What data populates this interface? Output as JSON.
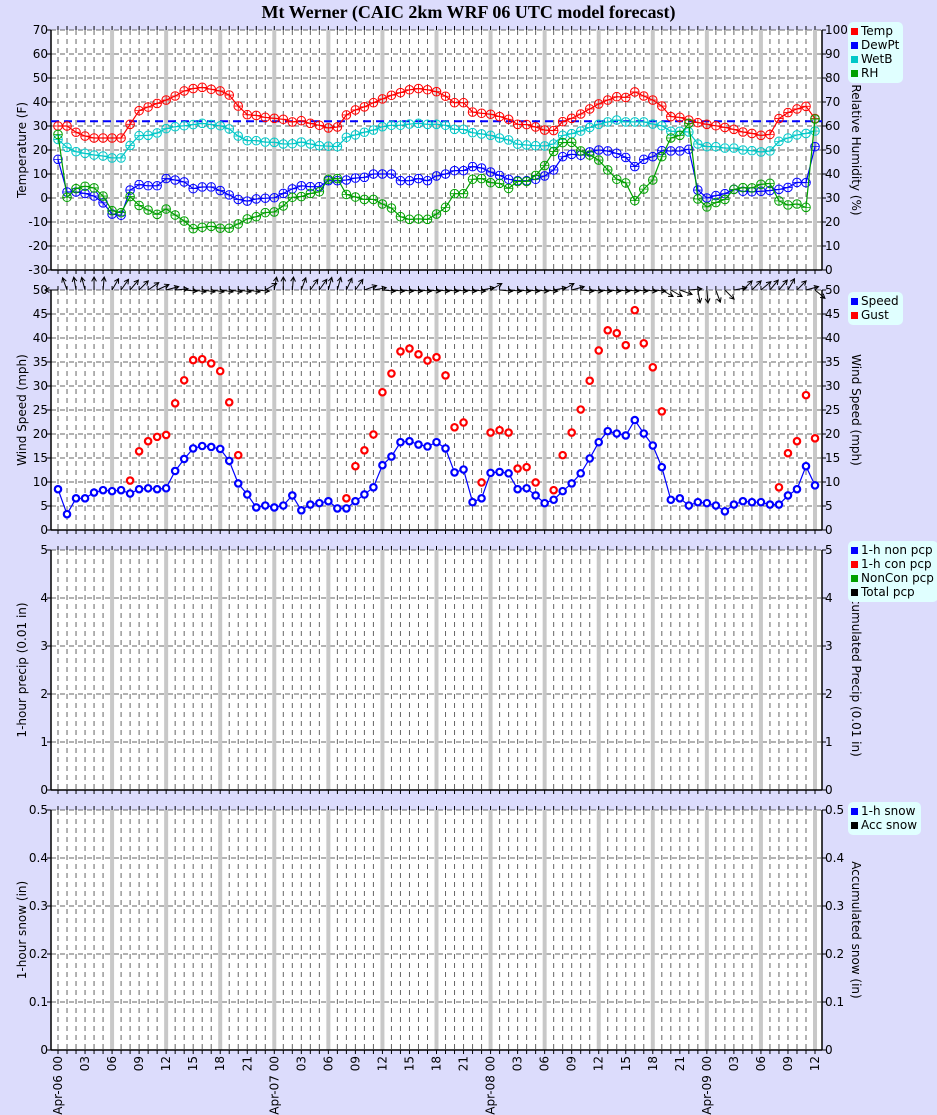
{
  "title": "Mt Werner (CAIC 2km WRF 06 UTC model forecast)",
  "x_axis": {
    "type": "time",
    "start": "Apr-06 00",
    "end": "Apr-09 12",
    "step_hours": 1,
    "tick_labels": [
      "Apr-06 00",
      "03",
      "06",
      "09",
      "12",
      "15",
      "18",
      "21",
      "Apr-07 00",
      "03",
      "06",
      "09",
      "12",
      "15",
      "18",
      "21",
      "Apr-08 00",
      "03",
      "06",
      "09",
      "12",
      "15",
      "18",
      "21",
      "Apr-09 00",
      "03",
      "06",
      "09",
      "12"
    ],
    "major_grid_every_hours": 6
  },
  "chart_data": [
    {
      "type": "line",
      "ylabel": "Temperature (F)",
      "ylabel_right": "Relative Humidity (%)",
      "ylim": [
        -30,
        70
      ],
      "ylim_right": [
        0,
        100
      ],
      "yticks": [
        -30,
        -20,
        -10,
        0,
        10,
        20,
        30,
        40,
        50,
        60,
        70
      ],
      "yticks_right": [
        0,
        10,
        20,
        30,
        40,
        50,
        60,
        70,
        80,
        90,
        100
      ],
      "grid": true,
      "legend": "top-right outside",
      "reference_line": {
        "y": 32,
        "color": "#0000ff",
        "style": "dashed"
      },
      "series": [
        {
          "name": "Temp",
          "color": "#ff0000",
          "axis": "left",
          "values": [
            30,
            30,
            27.4,
            25.8,
            25,
            25,
            25,
            25,
            30.7,
            36.4,
            37.9,
            39.4,
            40.8,
            42.5,
            44.6,
            45.6,
            46.1,
            45.3,
            44.6,
            42.9,
            38.3,
            34.7,
            34.4,
            33.6,
            33.2,
            32.8,
            31.7,
            32.2,
            31.1,
            30.3,
            29.2,
            29.6,
            34.6,
            36.7,
            38,
            39.7,
            41.3,
            42.8,
            43.9,
            45.1,
            45.6,
            45.1,
            44.3,
            42.4,
            39.7,
            39.7,
            35.8,
            35.3,
            34.9,
            33.9,
            32.8,
            30.7,
            30.6,
            29.6,
            28.3,
            28.1,
            31.8,
            33.2,
            35,
            37.1,
            39.2,
            40.8,
            42.2,
            41.9,
            44.2,
            42.5,
            40.8,
            38.3,
            33.9,
            33.6,
            32.5,
            31.4,
            30.7,
            30.1,
            29.4,
            28.6,
            27.5,
            26.9,
            26.1,
            26.5,
            33.1,
            35.6,
            37.1,
            38.2,
            33.1
          ]
        },
        {
          "name": "DewPt",
          "color": "#0000ff",
          "axis": "left",
          "values": [
            16.1,
            2.5,
            2.5,
            1.9,
            0.8,
            -2,
            -6.7,
            -7.2,
            3.3,
            5.6,
            5.1,
            5.1,
            8.1,
            7.5,
            6.7,
            3.9,
            4.6,
            4.6,
            3.1,
            1.3,
            -0.6,
            -1.3,
            -0.4,
            -0.1,
            0.1,
            1.9,
            3.8,
            5.1,
            4.7,
            4.7,
            7.2,
            7.2,
            7.5,
            8.3,
            8.6,
            10,
            10,
            10,
            7.2,
            7.2,
            8.1,
            7.2,
            9.2,
            10,
            11.4,
            11.4,
            13.1,
            12.5,
            10.8,
            9.4,
            7.8,
            7.2,
            7.2,
            7.8,
            9.2,
            11.7,
            17.2,
            18.2,
            17.8,
            19.2,
            20,
            19.6,
            18.6,
            16.9,
            13.1,
            16.1,
            17.2,
            19.7,
            19.6,
            19.6,
            20.3,
            3.3,
            0,
            1,
            1.8,
            3.6,
            2.8,
            2.6,
            2.8,
            3.1,
            3.6,
            4.4,
            6.5,
            6.4,
            21.4
          ]
        },
        {
          "name": "WetB",
          "color": "#00c8c8",
          "axis": "left",
          "values": [
            24.4,
            21.1,
            19.3,
            18.6,
            17.9,
            17.5,
            16.7,
            16.7,
            21.9,
            26,
            26.1,
            27.1,
            28.9,
            29.7,
            30.1,
            30.6,
            31.1,
            30.6,
            30.1,
            28.8,
            25.8,
            23.9,
            23.9,
            23.3,
            23.2,
            22.5,
            22.6,
            23.3,
            22.5,
            21.8,
            21.6,
            21.4,
            25.3,
            26.3,
            27.4,
            28.3,
            29.7,
            30.3,
            30.3,
            30.8,
            31.1,
            30.7,
            30.7,
            30.3,
            28.6,
            28.6,
            27.2,
            26.7,
            26.1,
            25,
            24.2,
            22.4,
            22.1,
            21.8,
            21.7,
            22.5,
            26.1,
            26.8,
            27.9,
            29.4,
            30.7,
            31.7,
            32.5,
            31.7,
            31.7,
            31.7,
            30.8,
            30.1,
            27.8,
            27.8,
            27.5,
            22.5,
            21.4,
            21.4,
            20.8,
            20.8,
            20,
            19.7,
            19.2,
            19.6,
            23.6,
            25,
            26.3,
            26.9,
            27.9
          ]
        },
        {
          "name": "RH",
          "color": "#00a000",
          "axis": "right",
          "values": [
            56.5,
            30.3,
            33.9,
            34.9,
            34.2,
            30.8,
            24.7,
            23.9,
            30.6,
            26.9,
            25,
            23.2,
            25.4,
            22.9,
            20.4,
            17.2,
            17.8,
            18.2,
            17.4,
            17.4,
            19.2,
            21.3,
            22.2,
            23.9,
            24.2,
            26.7,
            30.3,
            30.6,
            31.9,
            32.6,
            37.8,
            38.1,
            31.5,
            30.4,
            29.4,
            29.4,
            27.5,
            25.8,
            22.2,
            21.1,
            21.3,
            21.1,
            23.3,
            26.1,
            31.8,
            31.8,
            37.8,
            38.1,
            36.4,
            36.1,
            34,
            36.9,
            36.9,
            39.4,
            43.5,
            49.4,
            53.1,
            53.2,
            49.6,
            47.9,
            45.8,
            41.7,
            37.8,
            36.3,
            28.9,
            33.7,
            37.5,
            47.2,
            55,
            56.1,
            61.1,
            29.6,
            26.3,
            28.1,
            29.4,
            33.6,
            34.3,
            34.2,
            35.7,
            36.1,
            28.8,
            27.1,
            27.5,
            26.1,
            62.9
          ]
        }
      ]
    },
    {
      "type": "line",
      "ylabel": "Wind Speed (mph)",
      "ylabel_right": "Wind Speed (mph)",
      "ylim": [
        0,
        50
      ],
      "ylim_right": [
        0,
        50
      ],
      "yticks": [
        0,
        5,
        10,
        15,
        20,
        25,
        30,
        35,
        40,
        45,
        50
      ],
      "yticks_right": [
        0,
        5,
        10,
        15,
        20,
        25,
        30,
        35,
        40,
        45,
        50
      ],
      "grid": true,
      "legend": "top-right outside",
      "wind_direction_arrows_deg": [
        270,
        -20,
        -10,
        -15,
        0,
        5,
        30,
        35,
        40,
        45,
        55,
        65,
        75,
        85,
        95,
        98,
        98,
        98,
        98,
        98,
        98,
        98,
        95,
        60,
        10,
        0,
        5,
        20,
        35,
        35,
        15,
        15,
        25,
        35,
        70,
        80,
        95,
        95,
        95,
        95,
        95,
        95,
        95,
        95,
        95,
        95,
        95,
        80,
        60,
        95,
        95,
        95,
        95,
        95,
        95,
        80,
        60,
        75,
        95,
        95,
        95,
        95,
        95,
        95,
        95,
        95,
        95,
        120,
        120,
        110,
        85,
        170,
        175,
        160,
        135,
        80,
        45,
        45,
        50,
        40,
        40,
        30,
        45,
        75,
        130
      ],
      "series": [
        {
          "name": "Speed",
          "color": "#0000ff",
          "style": "line+markers",
          "values": [
            8.5,
            3.3,
            6.6,
            6.6,
            7.8,
            8.3,
            8.1,
            8.3,
            7.6,
            8.5,
            8.7,
            8.5,
            8.7,
            12.3,
            14.8,
            17,
            17.5,
            17.3,
            16.9,
            14.4,
            9.7,
            7.4,
            4.7,
            5.1,
            4.7,
            5.1,
            7.2,
            4.1,
            5.3,
            5.6,
            6,
            4.5,
            4.5,
            6,
            7.4,
            8.9,
            13.5,
            15.3,
            18.3,
            18.5,
            17.8,
            17.4,
            18.3,
            17,
            12,
            12.6,
            5.8,
            6.6,
            11.9,
            12.1,
            11.8,
            8.5,
            8.7,
            7.2,
            5.6,
            6.3,
            8.1,
            9.7,
            11.8,
            14.9,
            18.3,
            20.6,
            20.1,
            19.7,
            22.9,
            20.1,
            17.6,
            13.1,
            6.3,
            6.6,
            5.1,
            5.8,
            5.6,
            5.1,
            3.9,
            5.3,
            6,
            5.8,
            5.8,
            5.3,
            5.3,
            7.2,
            8.5,
            13.3,
            9.3
          ]
        },
        {
          "name": "Gust",
          "color": "#ff0000",
          "style": "markers",
          "values": [
            null,
            null,
            null,
            null,
            null,
            null,
            null,
            null,
            10.3,
            16.4,
            18.5,
            19.4,
            19.8,
            26.4,
            31.2,
            35.4,
            35.6,
            34.7,
            33.1,
            26.6,
            15.6,
            null,
            null,
            null,
            null,
            null,
            null,
            null,
            null,
            null,
            null,
            null,
            6.6,
            13.3,
            16.6,
            19.9,
            28.7,
            32.6,
            37.2,
            37.8,
            36.6,
            35.3,
            36,
            32.2,
            21.4,
            22.4,
            null,
            9.9,
            20.3,
            20.8,
            20.3,
            12.8,
            13.1,
            9.9,
            null,
            8.3,
            15.6,
            20.3,
            25.1,
            31.1,
            37.4,
            41.6,
            41,
            38.5,
            45.8,
            38.9,
            33.9,
            24.7,
            null,
            null,
            null,
            null,
            null,
            null,
            null,
            null,
            null,
            null,
            null,
            null,
            8.9,
            16,
            18.5,
            28.1,
            19.1
          ]
        }
      ]
    },
    {
      "type": "bar",
      "ylabel": "1-hour precip (0.01 in)",
      "ylabel_right": "Accumulated Precip (0.01 in)",
      "ylim": [
        0,
        5
      ],
      "ylim_right": [
        0,
        5
      ],
      "yticks": [
        0,
        1,
        2,
        3,
        4,
        5
      ],
      "yticks_right": [
        0,
        1,
        2,
        3,
        4,
        5
      ],
      "grid": true,
      "legend": "top-right outside",
      "series": [
        {
          "name": "1-h non pcp",
          "color": "#0000ff",
          "values": []
        },
        {
          "name": "1-h con pcp",
          "color": "#ff0000",
          "values": []
        },
        {
          "name": "NonCon pcp",
          "color": "#00a000",
          "values": []
        },
        {
          "name": "Total pcp",
          "color": "#000000",
          "values": []
        }
      ]
    },
    {
      "type": "bar",
      "ylabel": "1-hour snow (in)",
      "ylabel_right": "Accumulated snow (in)",
      "ylim": [
        0,
        0.5
      ],
      "ylim_right": [
        0,
        0.5
      ],
      "yticks": [
        "0",
        "0.1",
        "0.2",
        "0.3",
        "0.4",
        "0.5"
      ],
      "yticks_right": [
        "0",
        "0.1",
        "0.2",
        "0.3",
        "0.4",
        "0.5"
      ],
      "grid": true,
      "legend": "top-right outside",
      "series": [
        {
          "name": "1-h snow",
          "color": "#0000ff",
          "values": []
        },
        {
          "name": "Acc snow",
          "color": "#000000",
          "values": []
        }
      ]
    }
  ]
}
